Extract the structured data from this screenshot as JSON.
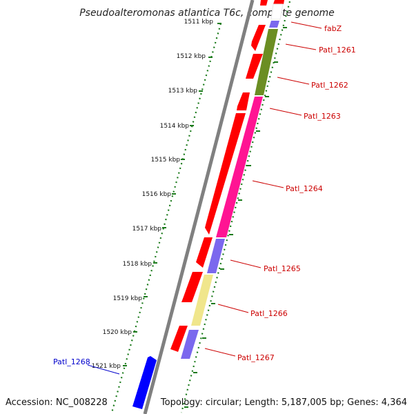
{
  "title": "Pseudoalteromonas atlantica T6c, complete genome",
  "footer": {
    "accession": "Accession: NC_008228",
    "topology": "Topology: circular; Length: 5,187,005 bp; Genes: 4,364"
  },
  "scale_ticks": [
    "1511 kbp",
    "1512 kbp",
    "1513 kbp",
    "1514 kbp",
    "1515 kbp",
    "1516 kbp",
    "1517 kbp",
    "1518 kbp",
    "1519 kbp",
    "1520 kbp",
    "1521 kbp"
  ],
  "gene_labels": [
    {
      "name": "fabZ",
      "color": "#cc0000",
      "strand": "forward"
    },
    {
      "name": "Patl_1261",
      "color": "#cc0000",
      "strand": "forward"
    },
    {
      "name": "Patl_1262",
      "color": "#cc0000",
      "strand": "forward"
    },
    {
      "name": "Patl_1263",
      "color": "#cc0000",
      "strand": "forward"
    },
    {
      "name": "Patl_1264",
      "color": "#cc0000",
      "strand": "forward"
    },
    {
      "name": "Patl_1265",
      "color": "#cc0000",
      "strand": "forward"
    },
    {
      "name": "Patl_1266",
      "color": "#cc0000",
      "strand": "forward"
    },
    {
      "name": "Patl_1267",
      "color": "#cc0000",
      "strand": "forward"
    },
    {
      "name": "Patl_1268",
      "color": "#0000cc",
      "strand": "reverse"
    }
  ],
  "colors": {
    "cds": "#ff0000",
    "reverse_gene": "#0000ff",
    "backbone": "#808080",
    "scale": "#1a7a1a",
    "cog_green": "#6b8e23",
    "cog_pink": "#ff1493",
    "cog_blue": "#7b68ee",
    "cog_yellow": "#f0e68c"
  }
}
